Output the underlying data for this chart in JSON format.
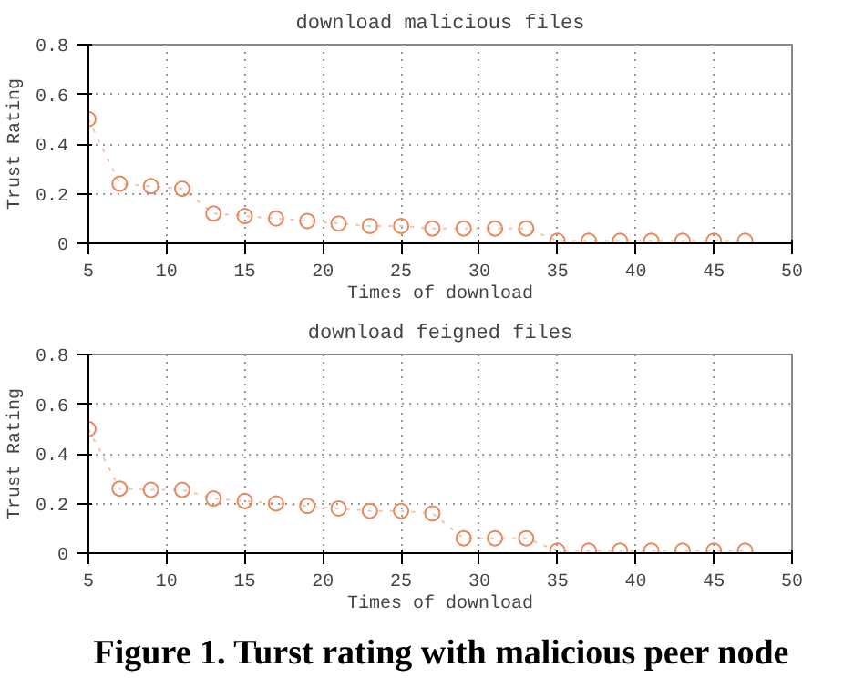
{
  "chart_data": [
    {
      "type": "line",
      "title": "download malicious files",
      "xlabel": "Times of download",
      "ylabel": "Trust Rating",
      "x": [
        5,
        7,
        9,
        11,
        13,
        15,
        17,
        19,
        21,
        23,
        25,
        27,
        29,
        31,
        33,
        35,
        37,
        39,
        41,
        43,
        45,
        47
      ],
      "series": [
        {
          "color": "#e8875a",
          "values": [
            0.5,
            0.24,
            0.23,
            0.22,
            0.12,
            0.11,
            0.1,
            0.09,
            0.08,
            0.07,
            0.07,
            0.06,
            0.06,
            0.06,
            0.06,
            0.01,
            0.01,
            0.01,
            0.01,
            0.01,
            0.01,
            0.01
          ]
        }
      ],
      "xlim": [
        5,
        50
      ],
      "xticks": [
        5,
        10,
        15,
        20,
        25,
        30,
        35,
        40,
        45,
        50
      ],
      "ylim": [
        0,
        0.8
      ],
      "yticks": [
        0,
        0.2,
        0.4,
        0.6,
        0.8
      ],
      "grid": true,
      "marker": "circle",
      "line_style": "dotted"
    },
    {
      "type": "line",
      "title": "download feigned files",
      "xlabel": "Times of download",
      "ylabel": "Trust Rating",
      "x": [
        5,
        7,
        9,
        11,
        13,
        15,
        17,
        19,
        21,
        23,
        25,
        27,
        29,
        31,
        33,
        35,
        37,
        39,
        41,
        43,
        45,
        47
      ],
      "series": [
        {
          "color": "#e8875a",
          "values": [
            0.5,
            0.26,
            0.255,
            0.255,
            0.22,
            0.21,
            0.2,
            0.19,
            0.18,
            0.17,
            0.17,
            0.16,
            0.06,
            0.06,
            0.06,
            0.01,
            0.01,
            0.01,
            0.01,
            0.01,
            0.01,
            0.01
          ]
        }
      ],
      "xlim": [
        5,
        50
      ],
      "xticks": [
        5,
        10,
        15,
        20,
        25,
        30,
        35,
        40,
        45,
        50
      ],
      "ylim": [
        0,
        0.8
      ],
      "yticks": [
        0,
        0.2,
        0.4,
        0.6,
        0.8
      ],
      "grid": true,
      "marker": "circle",
      "line_style": "dotted",
      "annotations": [
        "Figure 1. Turst rating with malicious peer node"
      ]
    }
  ]
}
